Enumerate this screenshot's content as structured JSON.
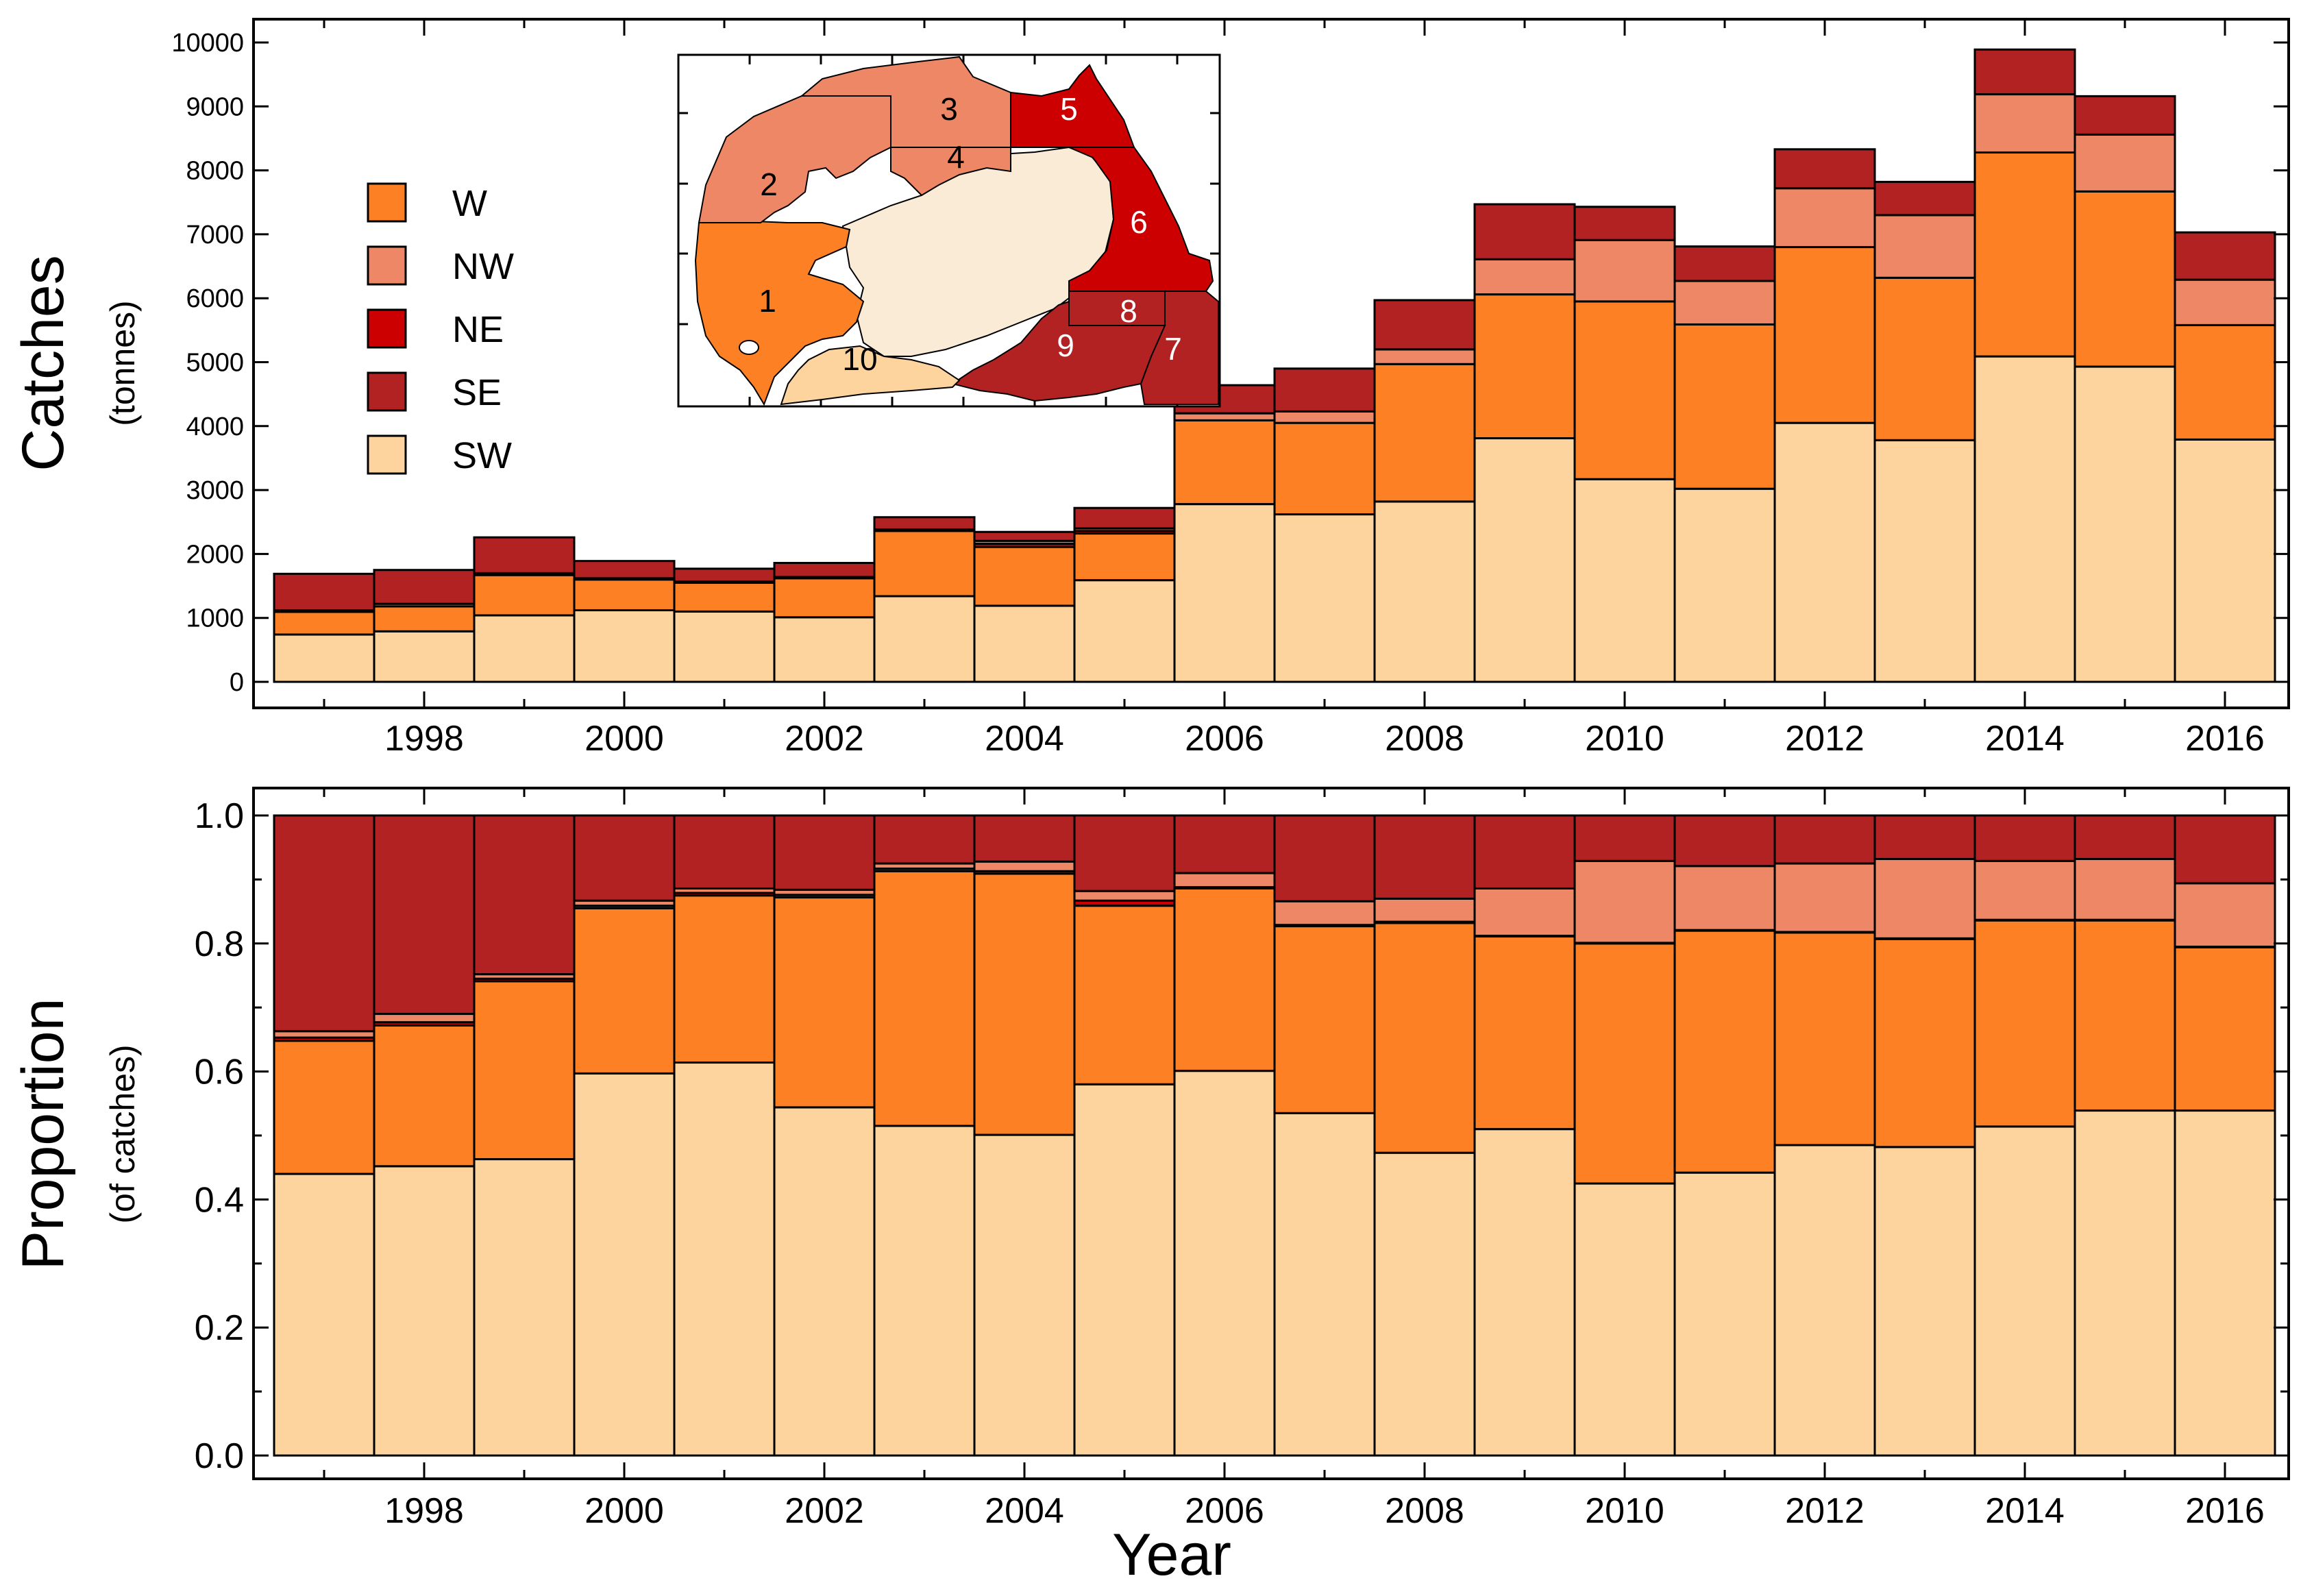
{
  "chart_data": [
    {
      "type": "bar",
      "stacked": true,
      "ylabel": "Catches",
      "ylabel_sub": "(tonnes)",
      "ylim": [
        0,
        10000
      ],
      "yticks": [
        0,
        1000,
        2000,
        3000,
        4000,
        5000,
        6000,
        7000,
        8000,
        9000,
        10000
      ],
      "x": [
        1997,
        1998,
        1999,
        2000,
        2001,
        2002,
        2003,
        2004,
        2005,
        2006,
        2007,
        2008,
        2009,
        2010,
        2011,
        2012,
        2013,
        2014,
        2015,
        2016
      ],
      "xticks": [
        1998,
        2000,
        2002,
        2004,
        2006,
        2008,
        2010,
        2012,
        2014,
        2016
      ],
      "grid": false,
      "legend_position": "upper-left",
      "series": [
        {
          "name": "SW",
          "color": "#FDD49E",
          "values": [
            740,
            790,
            1040,
            1120,
            1100,
            1010,
            1340,
            1190,
            1590,
            2780,
            2620,
            2820,
            3810,
            3170,
            3020,
            4050,
            3780,
            5090,
            4930,
            3790
          ]
        },
        {
          "name": "W",
          "color": "#FD8124",
          "values": [
            355,
            390,
            630,
            480,
            450,
            610,
            1020,
            920,
            730,
            1310,
            1430,
            2150,
            2250,
            2780,
            2570,
            2750,
            2540,
            3190,
            2740,
            1790
          ]
        },
        {
          "name": "NE",
          "color": "#CC0000",
          "values": [
            0,
            0,
            0,
            0,
            0,
            0,
            0,
            50,
            40,
            0,
            0,
            0,
            0,
            0,
            0,
            0,
            0,
            0,
            0,
            0
          ]
        },
        {
          "name": "NW",
          "color": "#EE8766",
          "values": [
            25,
            40,
            30,
            20,
            20,
            20,
            25,
            45,
            40,
            110,
            180,
            230,
            550,
            960,
            680,
            920,
            980,
            910,
            890,
            710
          ]
        },
        {
          "name": "SE",
          "color": "#B22222",
          "values": [
            570,
            530,
            560,
            270,
            200,
            220,
            190,
            140,
            320,
            440,
            670,
            770,
            860,
            520,
            540,
            610,
            520,
            700,
            600,
            740
          ]
        }
      ],
      "inset_map": {
        "regions": [
          "1",
          "2",
          "3",
          "4",
          "5",
          "6",
          "7",
          "8",
          "9",
          "10"
        ]
      }
    },
    {
      "type": "bar",
      "stacked": true,
      "ylabel": "Proportion",
      "ylabel_sub": "(of catches)",
      "xlabel": "Year",
      "ylim": [
        0,
        1
      ],
      "yticks": [
        "0.0",
        "0.2",
        "0.4",
        "0.6",
        "0.8",
        "1.0"
      ],
      "x": [
        1997,
        1998,
        1999,
        2000,
        2001,
        2002,
        2003,
        2004,
        2005,
        2006,
        2007,
        2008,
        2009,
        2010,
        2011,
        2012,
        2013,
        2014,
        2015,
        2016
      ],
      "xticks": [
        1998,
        2000,
        2002,
        2004,
        2006,
        2008,
        2010,
        2012,
        2014,
        2016
      ],
      "grid": false,
      "series": [
        {
          "name": "SW",
          "color": "#FDD49E",
          "values": [
            0.44,
            0.452,
            0.463,
            0.597,
            0.614,
            0.544,
            0.515,
            0.501,
            0.58,
            0.601,
            0.535,
            0.473,
            0.51,
            0.425,
            0.442,
            0.485,
            0.482,
            0.514,
            0.539,
            0.539
          ]
        },
        {
          "name": "W",
          "color": "#FD8124",
          "values": [
            0.208,
            0.22,
            0.278,
            0.258,
            0.261,
            0.328,
            0.398,
            0.408,
            0.279,
            0.285,
            0.292,
            0.359,
            0.301,
            0.375,
            0.378,
            0.332,
            0.325,
            0.322,
            0.297,
            0.255
          ]
        },
        {
          "name": "NE",
          "color": "#CC0000",
          "values": [
            0.005,
            0.005,
            0.004,
            0.004,
            0.004,
            0.004,
            0.004,
            0.004,
            0.008,
            0.002,
            0.002,
            0.002,
            0.001,
            0.001,
            0.001,
            0.001,
            0.001,
            0.001,
            0.001,
            0.001
          ]
        },
        {
          "name": "NW",
          "color": "#EE8766",
          "values": [
            0.01,
            0.013,
            0.007,
            0.008,
            0.007,
            0.008,
            0.008,
            0.015,
            0.015,
            0.022,
            0.037,
            0.036,
            0.074,
            0.128,
            0.1,
            0.107,
            0.124,
            0.092,
            0.095,
            0.099
          ]
        },
        {
          "name": "SE",
          "color": "#B22222",
          "values": [
            0.337,
            0.31,
            0.248,
            0.133,
            0.114,
            0.116,
            0.075,
            0.072,
            0.118,
            0.09,
            0.134,
            0.13,
            0.114,
            0.071,
            0.079,
            0.075,
            0.068,
            0.071,
            0.068,
            0.106
          ]
        }
      ]
    }
  ]
}
